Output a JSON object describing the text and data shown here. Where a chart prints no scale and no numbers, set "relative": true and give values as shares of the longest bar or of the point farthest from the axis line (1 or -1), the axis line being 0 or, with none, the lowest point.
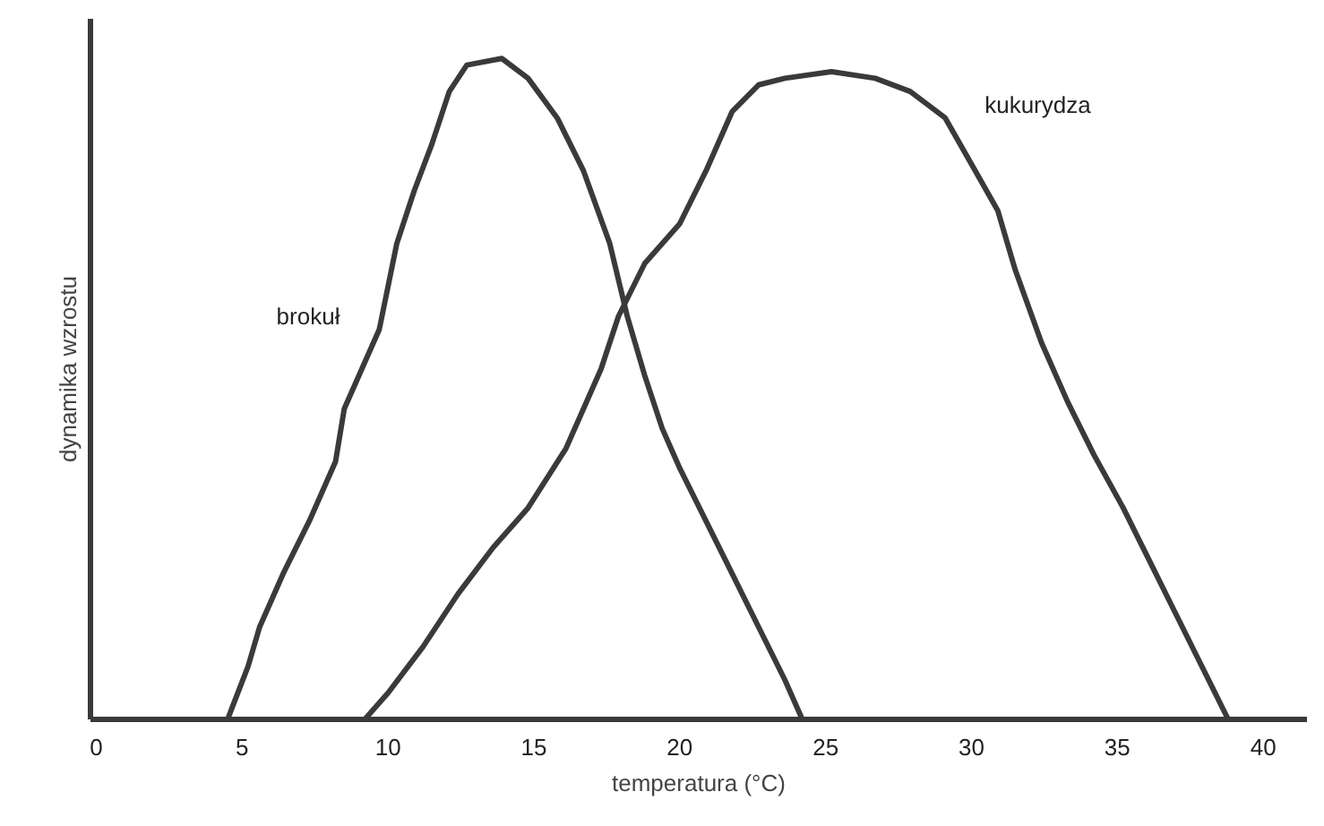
{
  "chart_data": {
    "type": "line",
    "relative": true,
    "xlabel": "temperatura (°C)",
    "ylabel": "dynamika wzrostu",
    "xlim": [
      -0.2,
      41.5
    ],
    "xticks": [
      0,
      5,
      10,
      15,
      20,
      25,
      30,
      35,
      40
    ],
    "grid": false,
    "marker": "none",
    "line_style": "solid",
    "series": [
      {
        "name": "brokuł",
        "color": "#3a3a3a",
        "x": [
          4.5,
          5.2,
          5.6,
          6.4,
          7.3,
          8.2,
          8.5,
          9.1,
          9.7,
          10.3,
          10.9,
          11.5,
          12.1,
          12.7,
          13.9,
          14.8,
          15.8,
          16.7,
          17.6,
          18.2,
          18.8,
          19.4,
          20.0,
          20.9,
          21.8,
          22.7,
          23.6,
          24.2
        ],
        "values": [
          0,
          0.08,
          0.14,
          0.22,
          0.3,
          0.39,
          0.47,
          0.53,
          0.59,
          0.72,
          0.8,
          0.87,
          0.95,
          0.99,
          1,
          0.97,
          0.91,
          0.83,
          0.72,
          0.61,
          0.52,
          0.44,
          0.38,
          0.3,
          0.22,
          0.14,
          0.06,
          0
        ]
      },
      {
        "name": "kukurydza",
        "color": "#3a3a3a",
        "x": [
          9.2,
          10.0,
          11.2,
          12.4,
          13.6,
          14.8,
          16.1,
          17.3,
          17.9,
          18.8,
          20.0,
          20.9,
          21.8,
          22.7,
          23.6,
          25.2,
          26.7,
          27.9,
          29.1,
          30.0,
          30.9,
          31.5,
          32.4,
          33.3,
          34.2,
          35.2,
          36.1,
          37.0,
          37.9,
          38.8
        ],
        "values": [
          0,
          0.04,
          0.11,
          0.19,
          0.26,
          0.32,
          0.41,
          0.53,
          0.61,
          0.69,
          0.75,
          0.83,
          0.92,
          0.96,
          0.97,
          0.98,
          0.97,
          0.95,
          0.91,
          0.84,
          0.77,
          0.68,
          0.57,
          0.48,
          0.4,
          0.32,
          0.24,
          0.16,
          0.08,
          0
        ]
      }
    ]
  }
}
